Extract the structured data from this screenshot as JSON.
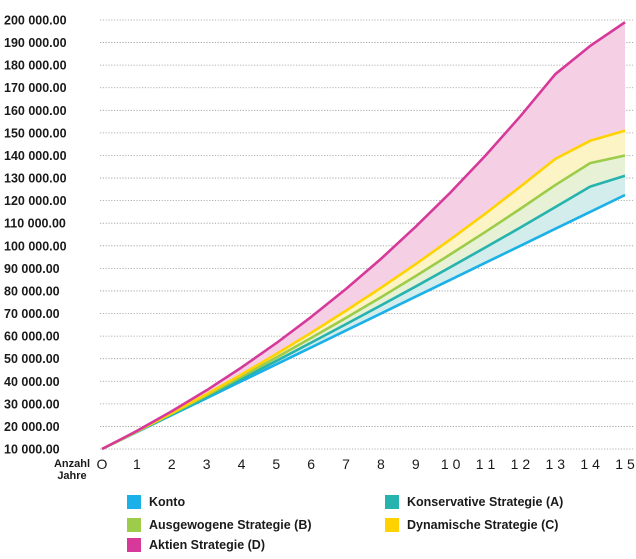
{
  "chart_data": {
    "type": "area",
    "title": "",
    "xlabel": "Anzahl Jahre",
    "ylabel": "",
    "x": [
      0,
      1,
      2,
      3,
      4,
      5,
      6,
      7,
      8,
      9,
      10,
      11,
      12,
      13,
      14,
      15
    ],
    "x_tick_labels": [
      "O",
      "1",
      "2",
      "3",
      "4",
      "5",
      "6",
      "7",
      "8",
      "9",
      "1 0",
      "1 1",
      "1 2",
      "1 3",
      "1 4",
      "1 5"
    ],
    "y_tick_labels": [
      "10 000.00",
      "20 000.00",
      "30 000.00",
      "40 000.00",
      "50 000.00",
      "60 000.00",
      "70 000.00",
      "80 000.00",
      "90 000.00",
      "100 000.00",
      "110 000.00",
      "120 000.00",
      "130 000.00",
      "140 000.00",
      "150 000.00",
      "160 000.00",
      "170 000.00",
      "180 000.00",
      "190 000.00",
      "200 000.00"
    ],
    "ylim": [
      10000,
      200000
    ],
    "grid": true,
    "legend_position": "bottom",
    "series": [
      {
        "name": "Konto",
        "color": "#1ab0e8",
        "values": [
          10000,
          17500,
          25000,
          32500,
          40000,
          47500,
          55000,
          62500,
          70000,
          77500,
          85000,
          92500,
          100000,
          107500,
          115000,
          122500
        ]
      },
      {
        "name": "Konservative Strategie (A)",
        "color": "#27b3ad",
        "values": [
          10000,
          17600,
          25300,
          33100,
          41000,
          49000,
          57100,
          65300,
          73600,
          82000,
          90600,
          99300,
          108100,
          117100,
          126200,
          131000
        ]
      },
      {
        "name": "Ausgewogene Strategie (B)",
        "color": "#9ccc4a",
        "values": [
          10000,
          17700,
          25600,
          33700,
          42000,
          50500,
          59200,
          68100,
          77200,
          86600,
          96300,
          106200,
          116400,
          126900,
          136600,
          140000
        ]
      },
      {
        "name": "Dynamische Strategie (C)",
        "color": "#ffd200",
        "values": [
          10000,
          17800,
          25900,
          34300,
          43000,
          52100,
          61500,
          71300,
          81400,
          91900,
          102900,
          114300,
          126200,
          138500,
          146500,
          151000
        ]
      },
      {
        "name": "Aktien Strategie (D)",
        "color": "#d6399a",
        "values": [
          10000,
          18000,
          26700,
          36000,
          46100,
          56900,
          68500,
          80900,
          94200,
          108500,
          123700,
          140000,
          157400,
          176000,
          188500,
          199000
        ]
      }
    ]
  },
  "legend": {
    "items": [
      {
        "label": "Konto",
        "color": "#1ab0e8"
      },
      {
        "label": "Konservative Strategie (A)",
        "color": "#27b3ad"
      },
      {
        "label": "Ausgewogene Strategie (B)",
        "color": "#9ccc4a"
      },
      {
        "label": "Dynamische Strategie (C)",
        "color": "#ffd200"
      },
      {
        "label": "Aktien Strategie (D)",
        "color": "#d6399a"
      }
    ]
  },
  "band_fills": {
    "konto_to_a": "#d3ecec",
    "a_to_b": "#e6f1d6",
    "b_to_c": "#fdf4c6",
    "c_to_d": "#f5d0e5"
  }
}
